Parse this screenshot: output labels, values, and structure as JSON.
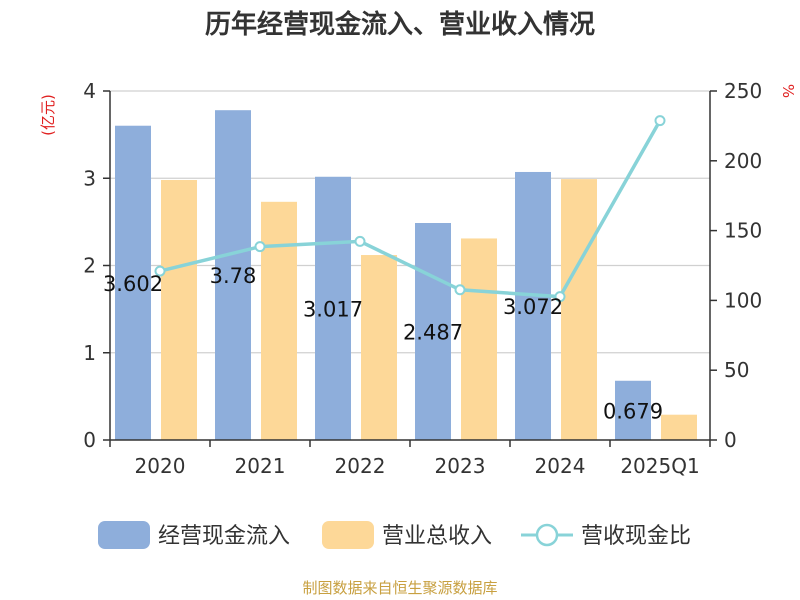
{
  "title": "历年经营现金流入、营业收入情况",
  "source": "制图数据来自恒生聚源数据库",
  "chart_data": {
    "type": "bar",
    "categories": [
      "2020",
      "2021",
      "2022",
      "2023",
      "2024",
      "2025Q1"
    ],
    "series": [
      {
        "name": "经营现金流入",
        "kind": "bar",
        "axis": "left",
        "color": "#8eaedb",
        "values": [
          3.602,
          3.78,
          3.017,
          2.487,
          3.072,
          0.679
        ],
        "labels": [
          "3.602",
          "3.78",
          "3.017",
          "2.487",
          "3.072",
          "0.679"
        ]
      },
      {
        "name": "营业总收入",
        "kind": "bar",
        "axis": "left",
        "color": "#fdd898",
        "values": [
          2.98,
          2.73,
          2.12,
          2.31,
          2.99,
          0.29
        ]
      },
      {
        "name": "营收现金比",
        "kind": "line",
        "axis": "right",
        "color": "#88d3d8",
        "values": [
          121,
          138.5,
          142.3,
          107.6,
          102.7,
          228.8
        ]
      }
    ],
    "y_left": {
      "label": "(亿元)",
      "min": 0,
      "max": 4,
      "ticks": [
        "0",
        "1",
        "2",
        "3",
        "4"
      ]
    },
    "y_right": {
      "label": "%",
      "min": 0,
      "max": 250,
      "ticks": [
        "0",
        "50",
        "100",
        "150",
        "200",
        "250"
      ]
    },
    "grid": true,
    "legend_position": "bottom"
  }
}
